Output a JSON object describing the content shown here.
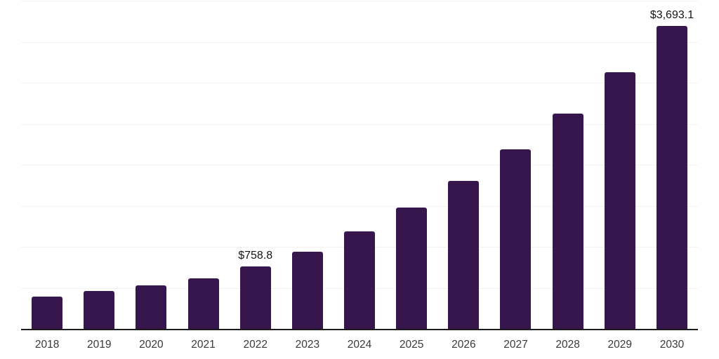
{
  "chart_data": {
    "type": "bar",
    "title": "",
    "xlabel": "",
    "ylabel": "",
    "categories": [
      "2018",
      "2019",
      "2020",
      "2021",
      "2022",
      "2023",
      "2024",
      "2025",
      "2026",
      "2027",
      "2028",
      "2029",
      "2030"
    ],
    "values": [
      395,
      460,
      530,
      615,
      758.8,
      940,
      1185,
      1475,
      1800,
      2190,
      2620,
      3130,
      3693.1
    ],
    "value_labels": {
      "2022": "$758.8",
      "2030": "$3,693.1"
    },
    "ylim": [
      0,
      4000
    ],
    "gridline_step": 500,
    "grid": "horizontal-only",
    "y_axis_tick_labels": "none",
    "legend": "none"
  },
  "colors": {
    "background": "#ffffff",
    "bar": "#37164e",
    "axis_line": "#1c1c1c",
    "gridline": "#f2f2f2",
    "tick_label": "#3a3a3a",
    "annotation_text": "#141414"
  }
}
